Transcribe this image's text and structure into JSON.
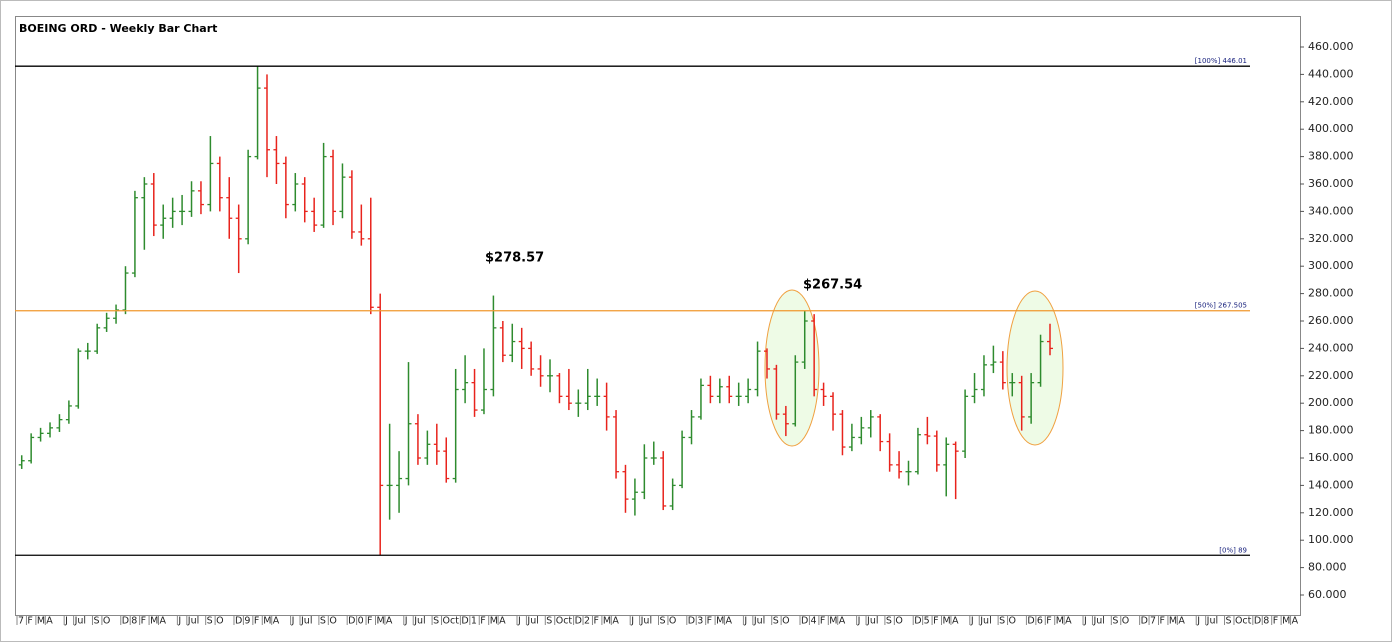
{
  "chart_data": {
    "type": "ohlc",
    "title": "BOEING ORD - Weekly Bar Chart",
    "categories": [
      "7",
      "F",
      "M",
      "A",
      null,
      "J",
      "Jul",
      null,
      "S",
      "O",
      null,
      "D",
      "8",
      "F",
      "M",
      "A",
      null,
      "J",
      "Jul",
      null,
      "S",
      "O",
      null,
      "D",
      "9",
      "F",
      "M",
      "A",
      null,
      "J",
      "Jul",
      null,
      "S",
      "O",
      null,
      "D",
      "0",
      "F",
      "M",
      "A",
      null,
      "J",
      "Jul",
      null,
      "S",
      "Oct",
      null,
      "D",
      "1",
      "F",
      "M",
      "A",
      null,
      "J",
      "Jul",
      null,
      "S",
      "Oct",
      null,
      "D",
      "2",
      "F",
      "M",
      "A",
      null,
      "J",
      "Jul",
      null,
      "S",
      "O",
      null,
      "D",
      "3",
      "F",
      "M",
      "A",
      null,
      "J",
      "Jul",
      null,
      "S",
      "O",
      null,
      "D",
      "4",
      "F",
      "M",
      "A",
      null,
      "J",
      "Jul",
      null,
      "S",
      "O",
      null,
      "D",
      "5",
      "F",
      "M",
      "A",
      null,
      "J",
      "Jul",
      null,
      "S",
      "O",
      null,
      "D",
      "6",
      "F",
      "M",
      "A",
      null,
      "J",
      "Jul",
      null,
      "S",
      "O",
      null,
      "D",
      "7",
      "F",
      "M",
      "A",
      null,
      "J",
      "Jul",
      null,
      "S",
      "Oct",
      null,
      "D",
      "8",
      "F",
      "M",
      "A"
    ],
    "open": [
      155,
      158,
      175,
      178,
      182,
      188,
      198,
      238,
      238,
      255,
      262,
      268,
      295,
      350,
      360,
      330,
      335,
      340,
      340,
      355,
      345,
      375,
      350,
      335,
      320,
      380,
      430,
      385,
      375,
      345,
      360,
      340,
      330,
      380,
      340,
      365,
      325,
      320,
      270,
      140,
      140,
      145,
      185,
      160,
      170,
      165,
      145,
      210,
      215,
      195,
      210,
      255,
      235,
      245,
      240,
      225,
      220,
      220,
      205,
      200,
      200,
      205,
      205,
      190,
      150,
      130,
      135,
      160,
      160,
      125,
      140,
      175,
      190,
      213,
      205,
      212,
      205,
      205,
      210,
      238,
      225,
      192,
      185,
      230,
      260,
      210,
      205,
      192,
      168,
      175,
      182,
      190,
      172,
      155,
      150,
      150,
      177,
      176,
      155,
      170,
      165,
      205,
      210,
      228,
      230,
      215,
      215,
      190,
      215,
      245,
      null,
      null,
      null,
      null,
      null,
      null,
      null,
      null,
      null,
      null,
      null,
      null,
      null,
      null,
      null,
      null,
      null,
      null,
      null,
      null,
      null,
      null,
      null,
      null,
      null,
      null
    ],
    "high": [
      162,
      178,
      182,
      186,
      192,
      202,
      240,
      244,
      258,
      266,
      272,
      300,
      355,
      365,
      368,
      345,
      350,
      352,
      362,
      362,
      395,
      380,
      365,
      345,
      385,
      446,
      440,
      395,
      380,
      368,
      365,
      350,
      390,
      385,
      375,
      370,
      345,
      350,
      280,
      185,
      165,
      230,
      192,
      180,
      185,
      175,
      225,
      235,
      225,
      240,
      278.57,
      260,
      258,
      255,
      245,
      235,
      232,
      222,
      225,
      210,
      225,
      218,
      215,
      195,
      155,
      145,
      170,
      172,
      165,
      145,
      180,
      195,
      218,
      220,
      218,
      220,
      215,
      218,
      245,
      240,
      228,
      198,
      235,
      267.54,
      265,
      215,
      208,
      195,
      185,
      190,
      195,
      192,
      178,
      165,
      158,
      182,
      190,
      180,
      175,
      172,
      210,
      222,
      235,
      242,
      238,
      222,
      220,
      222,
      250,
      258,
      null,
      null,
      null,
      null,
      null,
      null,
      null,
      null,
      null,
      null,
      null,
      null,
      null,
      null,
      null,
      null,
      null,
      null,
      null,
      null,
      null,
      null,
      null,
      null,
      null,
      null
    ],
    "low": [
      152,
      156,
      172,
      175,
      179,
      185,
      196,
      232,
      236,
      252,
      258,
      265,
      292,
      312,
      322,
      320,
      328,
      330,
      336,
      338,
      340,
      340,
      320,
      295,
      316,
      378,
      365,
      360,
      335,
      340,
      332,
      325,
      328,
      330,
      335,
      320,
      315,
      265,
      89,
      115,
      120,
      140,
      155,
      155,
      155,
      142,
      142,
      200,
      190,
      192,
      205,
      230,
      230,
      225,
      220,
      212,
      208,
      200,
      195,
      190,
      195,
      198,
      180,
      145,
      120,
      118,
      130,
      155,
      122,
      122,
      138,
      170,
      188,
      200,
      200,
      200,
      198,
      200,
      205,
      218,
      188,
      176,
      183,
      225,
      205,
      198,
      180,
      162,
      165,
      170,
      175,
      165,
      150,
      145,
      140,
      148,
      170,
      150,
      132,
      130,
      160,
      200,
      205,
      222,
      210,
      205,
      180,
      185,
      212,
      235,
      null,
      null,
      null,
      null,
      null,
      null,
      null,
      null,
      null,
      null,
      null,
      null,
      null,
      null,
      null,
      null,
      null,
      null,
      null,
      null,
      null,
      null,
      null,
      null,
      null,
      null
    ],
    "close": [
      158,
      175,
      178,
      182,
      188,
      198,
      238,
      238,
      255,
      262,
      268,
      295,
      350,
      360,
      330,
      335,
      340,
      340,
      355,
      345,
      375,
      350,
      335,
      320,
      380,
      430,
      385,
      375,
      345,
      360,
      340,
      330,
      380,
      340,
      365,
      325,
      320,
      270,
      140,
      140,
      145,
      185,
      160,
      170,
      165,
      145,
      210,
      215,
      195,
      210,
      255,
      235,
      245,
      240,
      225,
      220,
      220,
      205,
      200,
      200,
      205,
      205,
      190,
      150,
      130,
      135,
      160,
      160,
      125,
      140,
      175,
      190,
      213,
      205,
      212,
      205,
      205,
      210,
      238,
      225,
      192,
      185,
      230,
      260,
      210,
      205,
      192,
      168,
      175,
      182,
      190,
      172,
      155,
      150,
      150,
      177,
      176,
      155,
      170,
      165,
      205,
      210,
      228,
      230,
      215,
      215,
      190,
      215,
      245,
      240,
      null,
      null,
      null,
      null,
      null,
      null,
      null,
      null,
      null,
      null,
      null,
      null,
      null,
      null,
      null,
      null,
      null,
      null,
      null,
      null,
      null,
      null,
      null,
      null,
      null,
      null
    ],
    "up_color": "#2e8b2e",
    "down_color": "#e8231c",
    "ylim": [
      45.4,
      467.3
    ],
    "yticks": [
      {
        "value": 60,
        "label": "60.000"
      },
      {
        "value": 80,
        "label": "80.000"
      },
      {
        "value": 100,
        "label": "100.000"
      },
      {
        "value": 120,
        "label": "120.000"
      },
      {
        "value": 140,
        "label": "140.000"
      },
      {
        "value": 160,
        "label": "160.000"
      },
      {
        "value": 180,
        "label": "180.000"
      },
      {
        "value": 200,
        "label": "200.000"
      },
      {
        "value": 220,
        "label": "220.000"
      },
      {
        "value": 240,
        "label": "240.000"
      },
      {
        "value": 260,
        "label": "260.000"
      },
      {
        "value": 280,
        "label": "280.000"
      },
      {
        "value": 300,
        "label": "300.000"
      },
      {
        "value": 320,
        "label": "320.000"
      },
      {
        "value": 340,
        "label": "340.000"
      },
      {
        "value": 360,
        "label": "360.000"
      },
      {
        "value": 380,
        "label": "380.000"
      },
      {
        "value": 400,
        "label": "400.000"
      },
      {
        "value": 420,
        "label": "420.000"
      },
      {
        "value": 440,
        "label": "440.000"
      },
      {
        "value": 460,
        "label": "460.000"
      }
    ],
    "levels": [
      {
        "label": "[100%] 446.01",
        "value": 446.01,
        "color": "#000000"
      },
      {
        "label": "[50%] 267.505",
        "value": 267.505,
        "color": "#f0982e"
      },
      {
        "label": "[0%] 89",
        "value": 89,
        "color": "#000000"
      }
    ],
    "annotations": [
      "$278.57",
      "$267.54"
    ]
  }
}
